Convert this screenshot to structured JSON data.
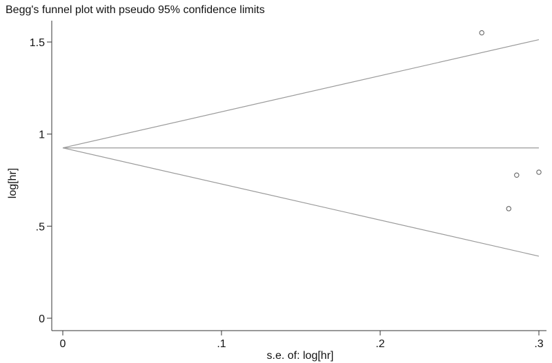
{
  "chart_data": {
    "type": "scatter",
    "title": "Begg's funnel plot with pseudo 95% confidence limits",
    "xlabel": "s.e. of: log[hr]",
    "ylabel": "log[hr]",
    "xlim": [
      0,
      0.3
    ],
    "ylim": [
      0,
      1.6
    ],
    "x_ticks": [
      {
        "value": 0,
        "label": "0"
      },
      {
        "value": 0.1,
        "label": ".1"
      },
      {
        "value": 0.2,
        "label": ".2"
      },
      {
        "value": 0.3,
        "label": ".3"
      }
    ],
    "y_ticks": [
      {
        "value": 0,
        "label": "0"
      },
      {
        "value": 0.5,
        "label": ".5"
      },
      {
        "value": 1,
        "label": "1"
      },
      {
        "value": 1.5,
        "label": "1.5"
      }
    ],
    "grid": false,
    "legend": "none",
    "pooled_estimate": 0.925,
    "confidence_limits": {
      "upper": [
        [
          0,
          0.925
        ],
        [
          0.3,
          1.513
        ]
      ],
      "lower": [
        [
          0,
          0.925
        ],
        [
          0.3,
          0.337
        ]
      ]
    },
    "points": [
      {
        "x": 0.264,
        "y": 1.55
      },
      {
        "x": 0.286,
        "y": 0.777
      },
      {
        "x": 0.281,
        "y": 0.595
      },
      {
        "x": 0.3,
        "y": 0.793
      }
    ],
    "colors": {
      "line": "#9a9a9a",
      "axis": "#333333",
      "marker": "#666666",
      "text": "#111111"
    }
  }
}
